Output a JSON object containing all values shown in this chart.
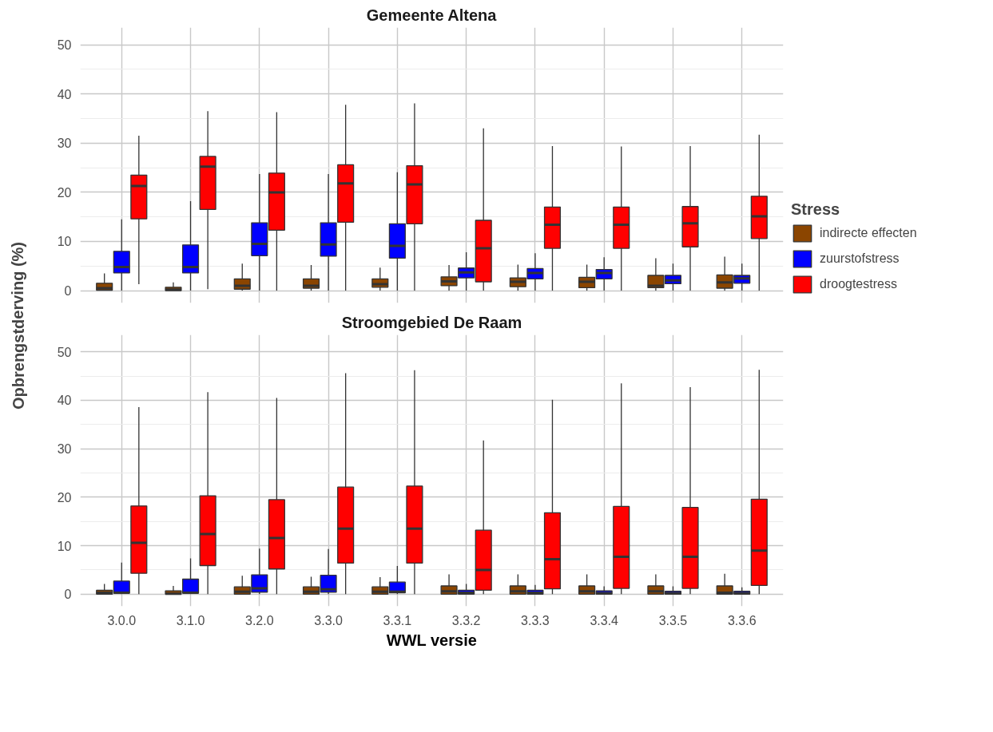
{
  "chart_data": [
    {
      "type": "box",
      "title": "Gemeente Altena",
      "ylabel": "Opbrengstderving (%)",
      "legend_title": "Stress",
      "legend": "right",
      "grid": true,
      "tick_labels": "y",
      "categories": [
        "3.0.0",
        "3.1.0",
        "3.2.0",
        "3.3.0",
        "3.3.1",
        "3.3.2",
        "3.3.3",
        "3.3.4",
        "3.3.5",
        "3.3.6"
      ],
      "ylim": [
        -2.5,
        53.5
      ],
      "yticks": [
        0,
        10,
        20,
        30,
        40,
        50
      ],
      "series": [
        {
          "name": "indirecte effecten",
          "color": "#8b4500",
          "boxes": [
            {
              "low": 0,
              "q1": 0.1,
              "median": 0.5,
              "q3": 1.5,
              "high": 3.5
            },
            {
              "low": 0,
              "q1": 0,
              "median": 0.2,
              "q3": 0.7,
              "high": 1.7
            },
            {
              "low": 0,
              "q1": 0.3,
              "median": 1.0,
              "q3": 2.4,
              "high": 5.5
            },
            {
              "low": 0,
              "q1": 0.5,
              "median": 1.0,
              "q3": 2.4,
              "high": 5.2
            },
            {
              "low": 0,
              "q1": 0.7,
              "median": 1.3,
              "q3": 2.4,
              "high": 4.7
            },
            {
              "low": 0,
              "q1": 1.0,
              "median": 1.9,
              "q3": 2.8,
              "high": 5.2
            },
            {
              "low": 0,
              "q1": 0.8,
              "median": 1.8,
              "q3": 2.6,
              "high": 5.3
            },
            {
              "low": 0,
              "q1": 0.6,
              "median": 1.8,
              "q3": 2.7,
              "high": 5.3
            },
            {
              "low": 0,
              "q1": 0.6,
              "median": 1.0,
              "q3": 3.1,
              "high": 6.6
            },
            {
              "low": 0,
              "q1": 0.5,
              "median": 1.7,
              "q3": 3.2,
              "high": 6.9
            }
          ]
        },
        {
          "name": "zuurstofstress",
          "color": "#0000ff",
          "boxes": [
            {
              "low": 0,
              "q1": 3.6,
              "median": 4.8,
              "q3": 8.0,
              "high": 14.5
            },
            {
              "low": 0,
              "q1": 3.6,
              "median": 4.8,
              "q3": 9.3,
              "high": 18.2
            },
            {
              "low": 0,
              "q1": 7.1,
              "median": 9.5,
              "q3": 13.8,
              "high": 23.7
            },
            {
              "low": 0,
              "q1": 7.0,
              "median": 9.4,
              "q3": 13.8,
              "high": 23.7
            },
            {
              "low": 0,
              "q1": 6.6,
              "median": 9.1,
              "q3": 13.6,
              "high": 24.1
            },
            {
              "low": 0,
              "q1": 2.6,
              "median": 3.7,
              "q3": 4.6,
              "high": 7.8
            },
            {
              "low": 0,
              "q1": 2.4,
              "median": 3.6,
              "q3": 4.5,
              "high": 7.6
            },
            {
              "low": 0,
              "q1": 2.4,
              "median": 3.6,
              "q3": 4.3,
              "high": 6.8
            },
            {
              "low": 0,
              "q1": 1.4,
              "median": 2.1,
              "q3": 3.1,
              "high": 5.5
            },
            {
              "low": 0,
              "q1": 1.5,
              "median": 2.5,
              "q3": 3.1,
              "high": 5.5
            }
          ]
        },
        {
          "name": "droogtestress",
          "color": "#ff0000",
          "boxes": [
            {
              "low": 1.3,
              "q1": 14.6,
              "median": 21.3,
              "q3": 23.5,
              "high": 31.5
            },
            {
              "low": 0.3,
              "q1": 16.5,
              "median": 25.2,
              "q3": 27.3,
              "high": 36.5
            },
            {
              "low": 0,
              "q1": 12.3,
              "median": 20.0,
              "q3": 23.9,
              "high": 36.3
            },
            {
              "low": 0,
              "q1": 13.9,
              "median": 21.8,
              "q3": 25.6,
              "high": 37.8
            },
            {
              "low": 0,
              "q1": 13.6,
              "median": 21.6,
              "q3": 25.4,
              "high": 38.1
            },
            {
              "low": 0,
              "q1": 1.8,
              "median": 8.6,
              "q3": 14.3,
              "high": 33.0
            },
            {
              "low": 0,
              "q1": 8.6,
              "median": 13.4,
              "q3": 17.0,
              "high": 29.4
            },
            {
              "low": 0,
              "q1": 8.6,
              "median": 13.4,
              "q3": 17.0,
              "high": 29.3
            },
            {
              "low": 0,
              "q1": 8.9,
              "median": 13.7,
              "q3": 17.1,
              "high": 29.4
            },
            {
              "low": 0,
              "q1": 10.6,
              "median": 15.1,
              "q3": 19.2,
              "high": 31.7
            }
          ]
        }
      ]
    },
    {
      "type": "box",
      "title": "Stroomgebied De Raam",
      "xlabel": "WWL versie",
      "grid": true,
      "categories": [
        "3.0.0",
        "3.1.0",
        "3.2.0",
        "3.3.0",
        "3.3.1",
        "3.3.2",
        "3.3.3",
        "3.3.4",
        "3.3.5",
        "3.3.6"
      ],
      "ylim": [
        -2.5,
        53.5
      ],
      "yticks": [
        0,
        10,
        20,
        30,
        40,
        50
      ],
      "series": [
        {
          "color": "#8b4500",
          "boxes": [
            {
              "low": 0,
              "q1": 0,
              "median": 0.3,
              "q3": 0.8,
              "high": 2.1
            },
            {
              "low": 0,
              "q1": 0,
              "median": 0.1,
              "q3": 0.7,
              "high": 1.7
            },
            {
              "low": 0,
              "q1": 0,
              "median": 0.5,
              "q3": 1.5,
              "high": 3.8
            },
            {
              "low": 0,
              "q1": 0,
              "median": 0.5,
              "q3": 1.5,
              "high": 3.6
            },
            {
              "low": 0,
              "q1": 0,
              "median": 0.5,
              "q3": 1.5,
              "high": 3.5
            },
            {
              "low": 0,
              "q1": 0,
              "median": 0.6,
              "q3": 1.7,
              "high": 4.1
            },
            {
              "low": 0,
              "q1": 0,
              "median": 0.6,
              "q3": 1.7,
              "high": 4.1
            },
            {
              "low": 0,
              "q1": 0,
              "median": 0.6,
              "q3": 1.7,
              "high": 4.1
            },
            {
              "low": 0,
              "q1": 0,
              "median": 0.6,
              "q3": 1.7,
              "high": 4.1
            },
            {
              "low": 0,
              "q1": 0,
              "median": 0.3,
              "q3": 1.7,
              "high": 4.2
            }
          ]
        },
        {
          "color": "#0000ff",
          "boxes": [
            {
              "low": 0,
              "q1": 0.2,
              "median": 0.3,
              "q3": 2.7,
              "high": 6.5
            },
            {
              "low": 0,
              "q1": 0.2,
              "median": 0.3,
              "q3": 3.1,
              "high": 7.4
            },
            {
              "low": 0,
              "q1": 0.4,
              "median": 1.2,
              "q3": 4.0,
              "high": 9.4
            },
            {
              "low": 0,
              "q1": 0.4,
              "median": 1.0,
              "q3": 3.9,
              "high": 9.3
            },
            {
              "low": 0,
              "q1": 0.3,
              "median": 0.5,
              "q3": 2.5,
              "high": 5.8
            },
            {
              "low": 0,
              "q1": 0,
              "median": 0.3,
              "q3": 0.8,
              "high": 2.1
            },
            {
              "low": 0,
              "q1": 0,
              "median": 0.3,
              "q3": 0.8,
              "high": 1.9
            },
            {
              "low": 0,
              "q1": 0,
              "median": 0.2,
              "q3": 0.7,
              "high": 1.6
            },
            {
              "low": 0,
              "q1": 0,
              "median": 0.2,
              "q3": 0.6,
              "high": 1.6
            },
            {
              "low": 0,
              "q1": 0,
              "median": 0.2,
              "q3": 0.6,
              "high": 1.4
            }
          ]
        },
        {
          "color": "#ff0000",
          "boxes": [
            {
              "low": 0,
              "q1": 4.3,
              "median": 10.6,
              "q3": 18.2,
              "high": 38.6
            },
            {
              "low": 0,
              "q1": 5.9,
              "median": 12.4,
              "q3": 20.3,
              "high": 41.7
            },
            {
              "low": 0,
              "q1": 5.2,
              "median": 11.6,
              "q3": 19.5,
              "high": 40.5
            },
            {
              "low": 0,
              "q1": 6.4,
              "median": 13.5,
              "q3": 22.1,
              "high": 45.6
            },
            {
              "low": 0,
              "q1": 6.4,
              "median": 13.5,
              "q3": 22.3,
              "high": 46.2
            },
            {
              "low": 0,
              "q1": 0.8,
              "median": 5.0,
              "q3": 13.2,
              "high": 31.7
            },
            {
              "low": 0,
              "q1": 1.1,
              "median": 7.2,
              "q3": 16.8,
              "high": 40.1
            },
            {
              "low": 0,
              "q1": 1.2,
              "median": 7.7,
              "q3": 18.1,
              "high": 43.5
            },
            {
              "low": 0,
              "q1": 1.2,
              "median": 7.7,
              "q3": 17.9,
              "high": 42.7
            },
            {
              "low": 0,
              "q1": 1.8,
              "median": 9.0,
              "q3": 19.6,
              "high": 46.3
            }
          ]
        }
      ]
    }
  ]
}
